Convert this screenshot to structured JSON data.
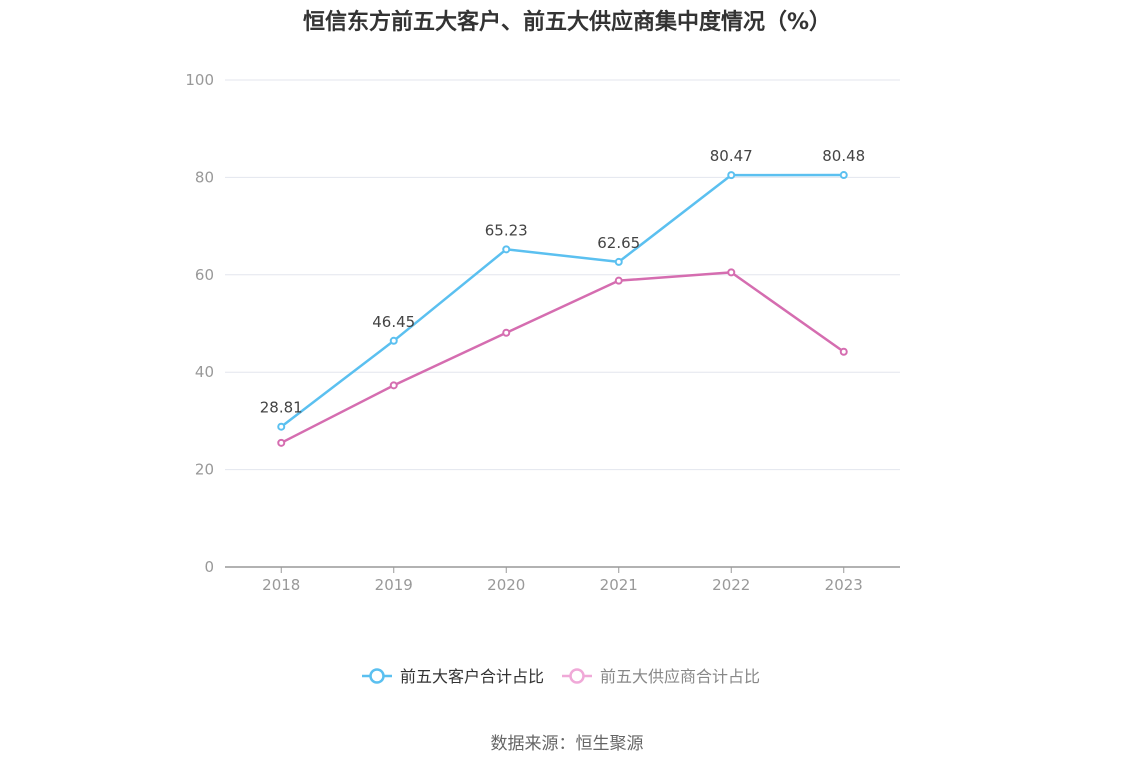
{
  "chart_data": {
    "type": "line",
    "title": "恒信东方前五大客户、前五大供应商集中度情况（%）",
    "categories": [
      "2018",
      "2019",
      "2020",
      "2021",
      "2022",
      "2023"
    ],
    "ylim": [
      0,
      100
    ],
    "yticks": [
      "0",
      "20",
      "40",
      "60",
      "80",
      "100"
    ],
    "grid": true,
    "legend_position": "bottom",
    "series": [
      {
        "name": "前五大客户合计占比",
        "color": "#5bc0f0",
        "values": [
          28.81,
          46.45,
          65.23,
          62.65,
          80.47,
          80.48
        ],
        "labels": [
          "28.81",
          "46.45",
          "65.23",
          "62.65",
          "80.47",
          "80.48"
        ]
      },
      {
        "name": "前五大供应商合计占比",
        "color": "#d56db0",
        "values": [
          25.5,
          37.3,
          48.1,
          58.8,
          60.5,
          44.2
        ],
        "labels": []
      }
    ]
  },
  "source": "数据来源：恒生聚源"
}
